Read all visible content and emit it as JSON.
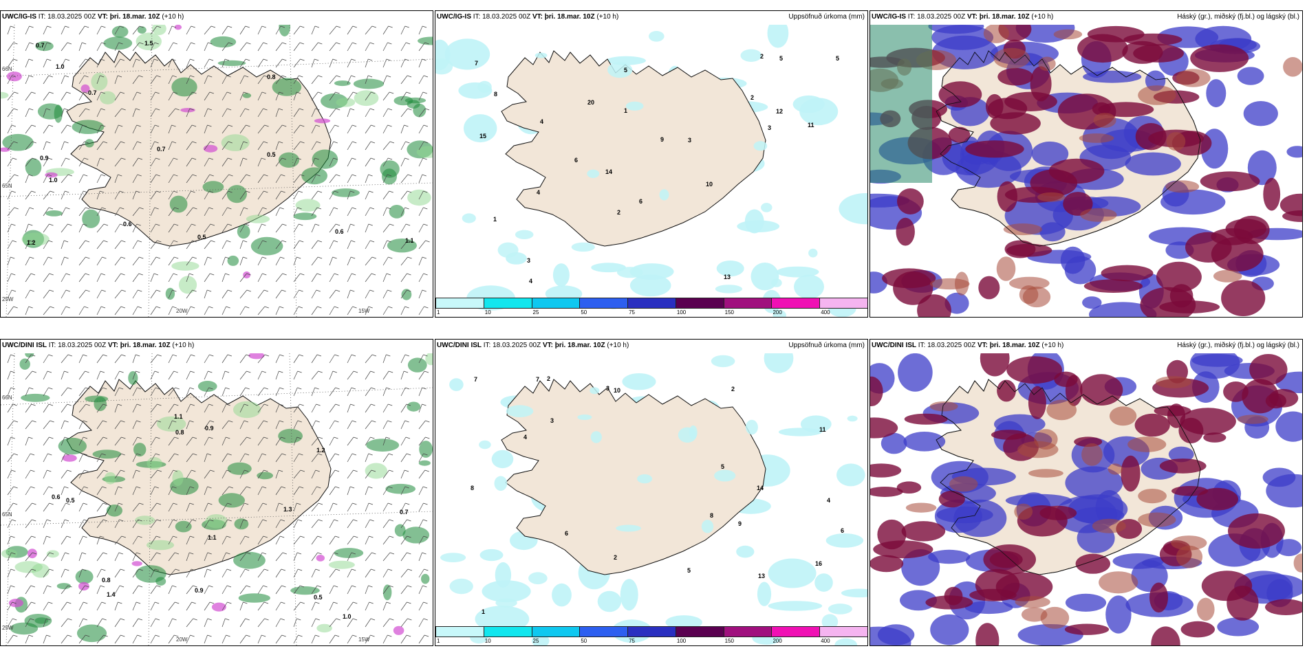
{
  "rows": [
    {
      "model": "UWC/IG-IS",
      "panels": [
        {
          "model": "UWC/IG-IS",
          "it_label": "IT:",
          "it": "18.03.2025 00Z",
          "vt_label": "VT:",
          "vt": "þri. 18.mar. 10Z",
          "lead": "(+10 h)",
          "right_title": ""
        },
        {
          "model": "UWC/IG-IS",
          "it_label": "IT:",
          "it": "18.03.2025 00Z",
          "vt_label": "VT:",
          "vt": "þri. 18.mar. 10Z",
          "lead": "(+10 h)",
          "right_title": "Uppsöfnuð úrkoma (mm)"
        },
        {
          "model": "UWC/IG-IS",
          "it_label": "IT:",
          "it": "18.03.2025 00Z",
          "vt_label": "VT:",
          "vt": "þri. 18.mar. 10Z",
          "lead": "(+10 h)",
          "right_title": "Háský (gr.), miðský (fj.bl.) og lágský (bl.)"
        }
      ]
    },
    {
      "model": "UWC/DINI ISL",
      "panels": [
        {
          "model": "UWC/DINI ISL",
          "it_label": "IT:",
          "it": "18.03.2025 00Z",
          "vt_label": "VT:",
          "vt": "þri. 18.mar. 10Z",
          "lead": "(+10 h)",
          "right_title": ""
        },
        {
          "model": "UWC/DINI ISL",
          "it_label": "IT:",
          "it": "18.03.2025 00Z",
          "vt_label": "VT:",
          "vt": "þri. 18.mar. 10Z",
          "lead": "(+10 h)",
          "right_title": "Uppsöfnuð úrkoma (mm)"
        },
        {
          "model": "UWC/DINI ISL",
          "it_label": "IT:",
          "it": "18.03.2025 00Z",
          "vt_label": "VT:",
          "vt": "þri. 18.mar. 10Z",
          "lead": "(+10 h)",
          "right_title": "Háský (gr.), miðský (fj.bl.) og lágský (bl.)"
        }
      ]
    }
  ],
  "axis_labels": {
    "lat": "66N",
    "lon_left": "25W",
    "lon_mid": "20W",
    "lon_right": "15W",
    "lat2": "65N"
  },
  "colorbar": {
    "ticks": [
      "1",
      "10",
      "25",
      "50",
      "75",
      "100",
      "150",
      "200",
      "400"
    ],
    "colors": [
      "#c8f8fa",
      "#12e6ee",
      "#0fc8f0",
      "#2d5ff0",
      "#2a2fc0",
      "#5a0050",
      "#a0107e",
      "#f010b4",
      "#f5b4f0"
    ]
  },
  "colors": {
    "land": "#f2e6d8",
    "coast": "#111111",
    "rain_green": "#1e8a3a",
    "snow_pink": "#d24bd2",
    "precip_cyan": "#bff3f7",
    "cloud_high": "#3c3cc8",
    "cloud_mid": "#7a0a3a",
    "cloud_low": "#4a2a80"
  },
  "precip_labels_top": [
    "4",
    "5",
    "6",
    "3",
    "7",
    "2",
    "5",
    "1",
    "10",
    "13",
    "11",
    "14",
    "15",
    "12",
    "20",
    "2",
    "3",
    "5",
    "8",
    "6",
    "4",
    "1",
    "9",
    "3",
    "2",
    "4"
  ],
  "precip_labels_bottom": [
    "2",
    "13",
    "7",
    "8",
    "4",
    "9",
    "11",
    "14",
    "10",
    "6",
    "16",
    "2",
    "3",
    "4",
    "1",
    "5",
    "7",
    "2",
    "3",
    "6",
    "5",
    "8"
  ],
  "wind_labels_top": [
    "1.0",
    "0.9",
    "0.5",
    "1.2",
    "0.8",
    "0.7",
    "0.6",
    "1.1",
    "1.5",
    "0.7",
    "0.5",
    "0.6",
    "1.0",
    "0.7"
  ],
  "wind_labels_bottom": [
    "0.5",
    "1.1",
    "0.8",
    "0.9",
    "1.2",
    "0.7",
    "1.4",
    "1.3",
    "0.6",
    "0.5",
    "0.9",
    "1.0",
    "0.8",
    "1.1"
  ]
}
